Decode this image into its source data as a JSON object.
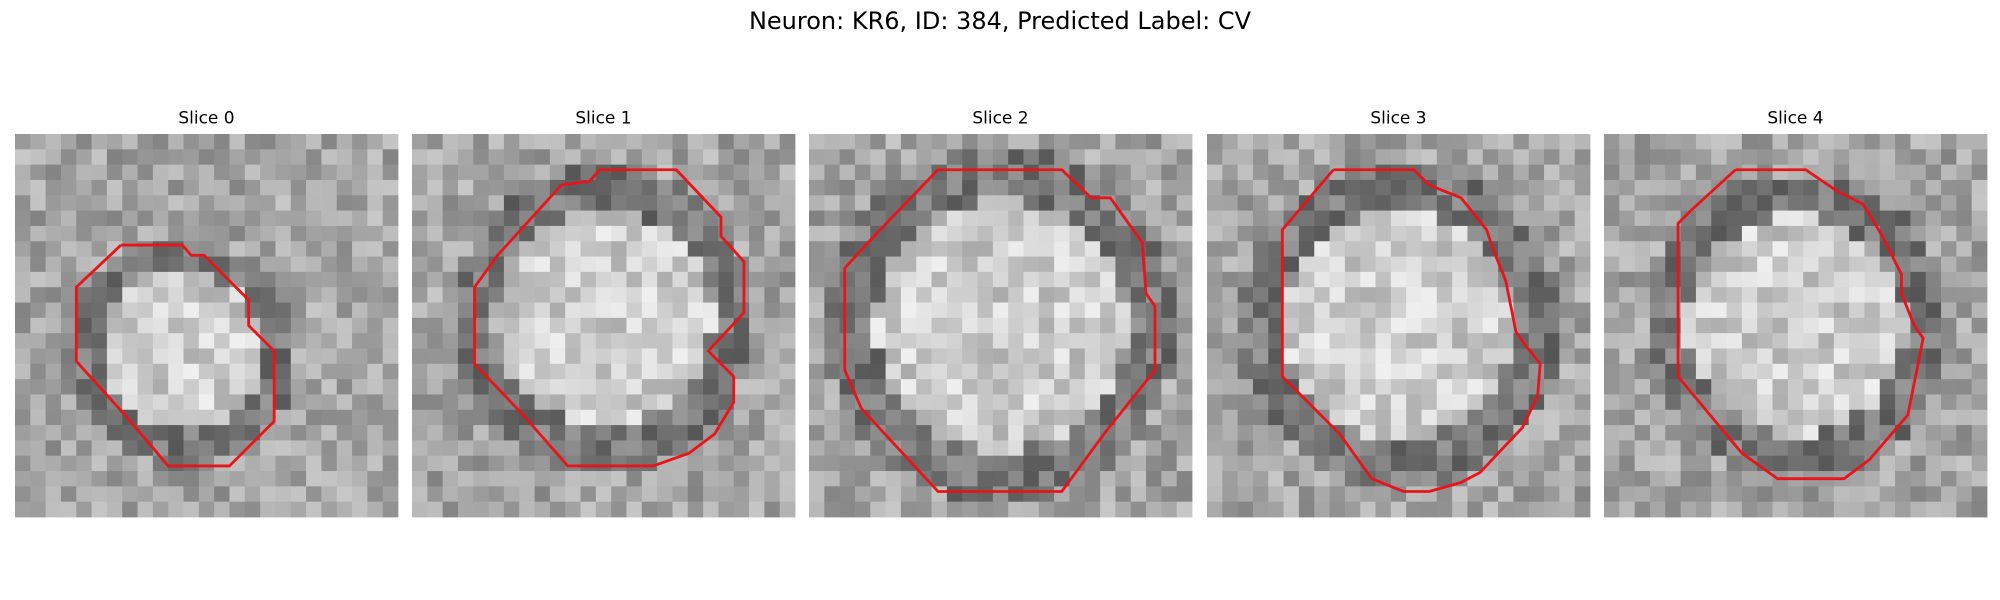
{
  "header": {
    "title": "Neuron: KR6, ID: 384, Predicted Label: CV"
  },
  "panels": [
    {
      "title": "Slice 0"
    },
    {
      "title": "Slice 1"
    },
    {
      "title": "Slice 2"
    },
    {
      "title": "Slice 3"
    },
    {
      "title": "Slice 4"
    }
  ]
}
